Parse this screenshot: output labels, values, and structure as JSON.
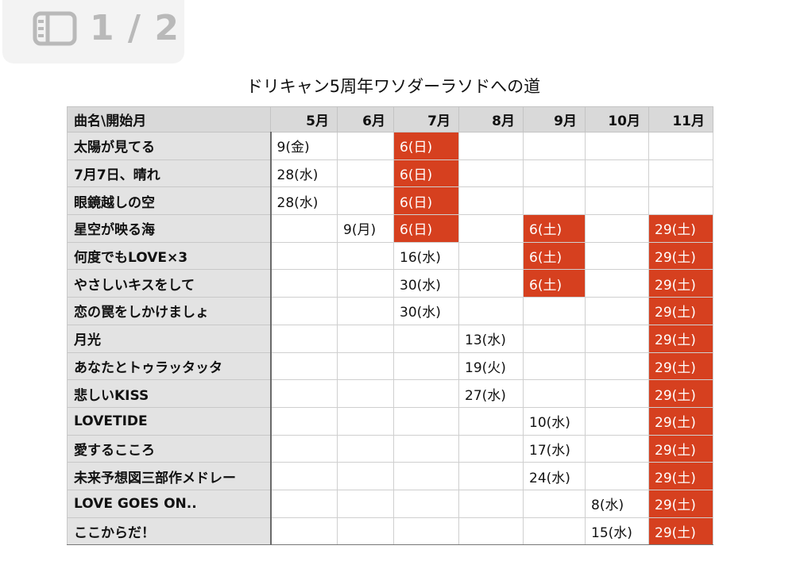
{
  "viewer": {
    "page_counter": "1 / 2",
    "icon": "sidebar-icon"
  },
  "title": "ドリキャン5周年ワソダーラソドへの道",
  "table": {
    "corner": "曲名\\開始月",
    "months": [
      "5月",
      "6月",
      "7月",
      "8月",
      "9月",
      "10月",
      "11月"
    ],
    "rows": [
      {
        "song": "太陽が見てる",
        "cells": [
          {
            "t": "9(金)",
            "h": false
          },
          {
            "t": "",
            "h": false
          },
          {
            "t": "6(日)",
            "h": true
          },
          {
            "t": "",
            "h": false
          },
          {
            "t": "",
            "h": false
          },
          {
            "t": "",
            "h": false
          },
          {
            "t": "",
            "h": false
          }
        ]
      },
      {
        "song": "7月7日、晴れ",
        "cells": [
          {
            "t": "28(水)",
            "h": false
          },
          {
            "t": "",
            "h": false
          },
          {
            "t": "6(日)",
            "h": true
          },
          {
            "t": "",
            "h": false
          },
          {
            "t": "",
            "h": false
          },
          {
            "t": "",
            "h": false
          },
          {
            "t": "",
            "h": false
          }
        ]
      },
      {
        "song": "眼鏡越しの空",
        "cells": [
          {
            "t": "28(水)",
            "h": false
          },
          {
            "t": "",
            "h": false
          },
          {
            "t": "6(日)",
            "h": true
          },
          {
            "t": "",
            "h": false
          },
          {
            "t": "",
            "h": false
          },
          {
            "t": "",
            "h": false
          },
          {
            "t": "",
            "h": false
          }
        ]
      },
      {
        "song": "星空が映る海",
        "cells": [
          {
            "t": "",
            "h": false
          },
          {
            "t": "9(月)",
            "h": false
          },
          {
            "t": "6(日)",
            "h": true
          },
          {
            "t": "",
            "h": false
          },
          {
            "t": "6(土)",
            "h": true
          },
          {
            "t": "",
            "h": false
          },
          {
            "t": "29(土)",
            "h": true
          }
        ]
      },
      {
        "song": "何度でもLOVE×3",
        "cells": [
          {
            "t": "",
            "h": false
          },
          {
            "t": "",
            "h": false
          },
          {
            "t": "16(水)",
            "h": false
          },
          {
            "t": "",
            "h": false
          },
          {
            "t": "6(土)",
            "h": true
          },
          {
            "t": "",
            "h": false
          },
          {
            "t": "29(土)",
            "h": true
          }
        ]
      },
      {
        "song": "やさしいキスをして",
        "cells": [
          {
            "t": "",
            "h": false
          },
          {
            "t": "",
            "h": false
          },
          {
            "t": "30(水)",
            "h": false
          },
          {
            "t": "",
            "h": false
          },
          {
            "t": "6(土)",
            "h": true
          },
          {
            "t": "",
            "h": false
          },
          {
            "t": "29(土)",
            "h": true
          }
        ]
      },
      {
        "song": "恋の罠をしかけましょ",
        "cells": [
          {
            "t": "",
            "h": false
          },
          {
            "t": "",
            "h": false
          },
          {
            "t": "30(水)",
            "h": false
          },
          {
            "t": "",
            "h": false
          },
          {
            "t": "",
            "h": false
          },
          {
            "t": "",
            "h": false
          },
          {
            "t": "29(土)",
            "h": true
          }
        ]
      },
      {
        "song": "月光",
        "cells": [
          {
            "t": "",
            "h": false
          },
          {
            "t": "",
            "h": false
          },
          {
            "t": "",
            "h": false
          },
          {
            "t": "13(水)",
            "h": false
          },
          {
            "t": "",
            "h": false
          },
          {
            "t": "",
            "h": false
          },
          {
            "t": "29(土)",
            "h": true
          }
        ]
      },
      {
        "song": "あなたとトゥラッタッタ",
        "cells": [
          {
            "t": "",
            "h": false
          },
          {
            "t": "",
            "h": false
          },
          {
            "t": "",
            "h": false
          },
          {
            "t": "19(火)",
            "h": false
          },
          {
            "t": "",
            "h": false
          },
          {
            "t": "",
            "h": false
          },
          {
            "t": "29(土)",
            "h": true
          }
        ]
      },
      {
        "song": "悲しいKISS",
        "cells": [
          {
            "t": "",
            "h": false
          },
          {
            "t": "",
            "h": false
          },
          {
            "t": "",
            "h": false
          },
          {
            "t": "27(水)",
            "h": false
          },
          {
            "t": "",
            "h": false
          },
          {
            "t": "",
            "h": false
          },
          {
            "t": "29(土)",
            "h": true
          }
        ]
      },
      {
        "song": "LOVETIDE",
        "cells": [
          {
            "t": "",
            "h": false
          },
          {
            "t": "",
            "h": false
          },
          {
            "t": "",
            "h": false
          },
          {
            "t": "",
            "h": false
          },
          {
            "t": "10(水)",
            "h": false
          },
          {
            "t": "",
            "h": false
          },
          {
            "t": "29(土)",
            "h": true
          }
        ]
      },
      {
        "song": "愛するこころ",
        "cells": [
          {
            "t": "",
            "h": false
          },
          {
            "t": "",
            "h": false
          },
          {
            "t": "",
            "h": false
          },
          {
            "t": "",
            "h": false
          },
          {
            "t": "17(水)",
            "h": false
          },
          {
            "t": "",
            "h": false
          },
          {
            "t": "29(土)",
            "h": true
          }
        ]
      },
      {
        "song": "未来予想図三部作メドレー",
        "cells": [
          {
            "t": "",
            "h": false
          },
          {
            "t": "",
            "h": false
          },
          {
            "t": "",
            "h": false
          },
          {
            "t": "",
            "h": false
          },
          {
            "t": "24(水)",
            "h": false
          },
          {
            "t": "",
            "h": false
          },
          {
            "t": "29(土)",
            "h": true
          }
        ]
      },
      {
        "song": "LOVE GOES ON..",
        "cells": [
          {
            "t": "",
            "h": false
          },
          {
            "t": "",
            "h": false
          },
          {
            "t": "",
            "h": false
          },
          {
            "t": "",
            "h": false
          },
          {
            "t": "",
            "h": false
          },
          {
            "t": "8(水)",
            "h": false
          },
          {
            "t": "29(土)",
            "h": true
          }
        ]
      },
      {
        "song": "ここからだ！",
        "cells": [
          {
            "t": "",
            "h": false
          },
          {
            "t": "",
            "h": false
          },
          {
            "t": "",
            "h": false
          },
          {
            "t": "",
            "h": false
          },
          {
            "t": "",
            "h": false
          },
          {
            "t": "15(水)",
            "h": false
          },
          {
            "t": "29(土)",
            "h": true
          }
        ]
      }
    ]
  },
  "colors": {
    "highlight": "#d6401f",
    "header_bg": "#d9d9d9",
    "row_header_bg": "#e3e3e3"
  }
}
